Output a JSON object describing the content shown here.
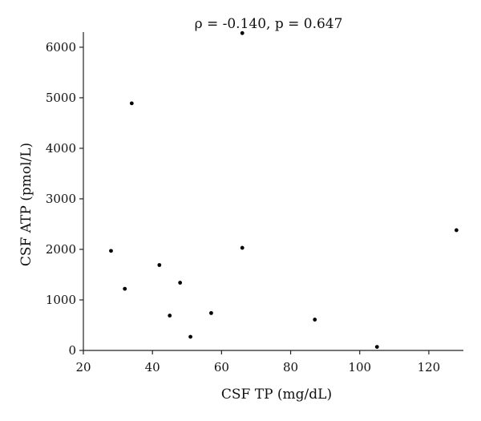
{
  "chart_data": {
    "type": "scatter",
    "title": "ρ = -0.140, p = 0.647",
    "xlabel": "CSF TP (mg/dL)",
    "ylabel": "CSF ATP (pmol/L)",
    "xlim": [
      20,
      130
    ],
    "ylim": [
      0,
      6300
    ],
    "xticks": [
      20,
      40,
      60,
      80,
      100,
      120
    ],
    "yticks": [
      0,
      1000,
      2000,
      3000,
      4000,
      5000,
      6000
    ],
    "grid": false,
    "legend": "none",
    "point_color": "#000000",
    "points": [
      {
        "x": 66,
        "y": 6280
      },
      {
        "x": 34,
        "y": 4890
      },
      {
        "x": 28,
        "y": 1970
      },
      {
        "x": 66,
        "y": 2030
      },
      {
        "x": 128,
        "y": 2380
      },
      {
        "x": 42,
        "y": 1690
      },
      {
        "x": 48,
        "y": 1340
      },
      {
        "x": 32,
        "y": 1220
      },
      {
        "x": 57,
        "y": 740
      },
      {
        "x": 45,
        "y": 690
      },
      {
        "x": 87,
        "y": 610
      },
      {
        "x": 51,
        "y": 270
      },
      {
        "x": 105,
        "y": 70
      }
    ]
  }
}
